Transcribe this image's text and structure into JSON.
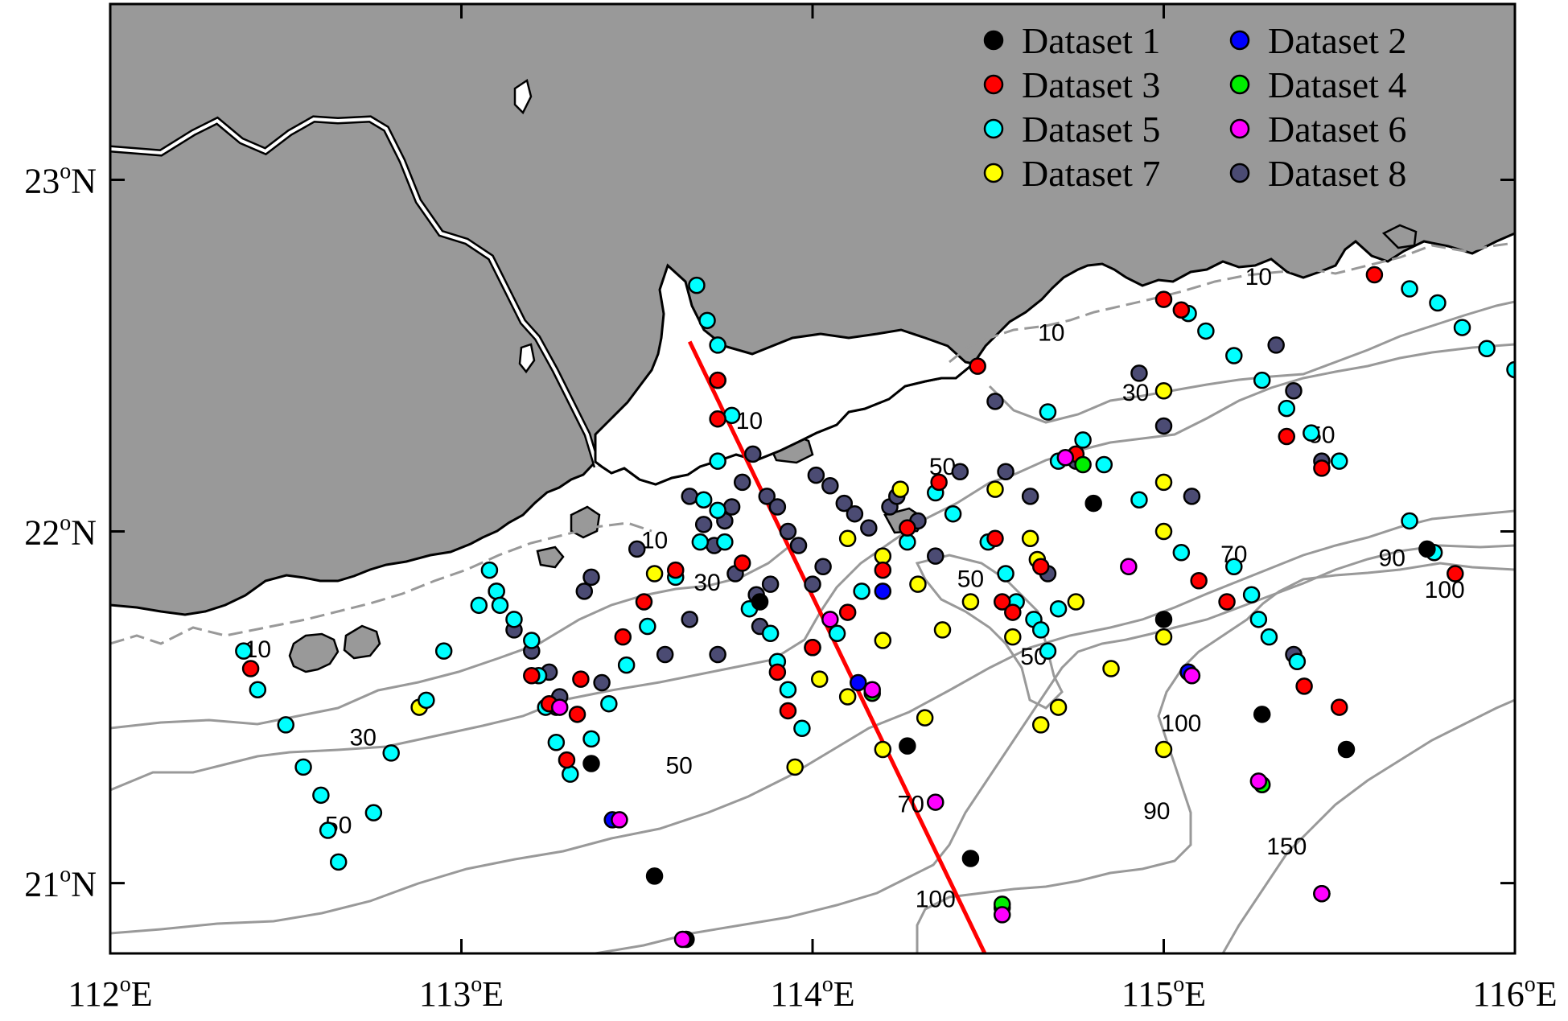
{
  "map": {
    "lon_range": [
      112,
      116
    ],
    "lat_range": [
      20.8,
      23.5
    ],
    "x_ticks": [
      {
        "value": 112,
        "deg": "112",
        "hemi": "E"
      },
      {
        "value": 113,
        "deg": "113",
        "hemi": "E"
      },
      {
        "value": 114,
        "deg": "114",
        "hemi": "E"
      },
      {
        "value": 115,
        "deg": "115",
        "hemi": "E"
      },
      {
        "value": 116,
        "deg": "116",
        "hemi": "E"
      }
    ],
    "y_ticks": [
      {
        "value": 21,
        "deg": "21",
        "hemi": "N"
      },
      {
        "value": 22,
        "deg": "22",
        "hemi": "N"
      },
      {
        "value": 23,
        "deg": "23",
        "hemi": "N"
      }
    ],
    "degree_symbol": "o",
    "colors": {
      "land": "#999999",
      "sea": "#ffffff",
      "coastline": "#000000",
      "contour": "#999999",
      "section_line": "#ff0000"
    }
  },
  "legend": [
    {
      "name": "Dataset 1",
      "color": "#000000"
    },
    {
      "name": "Dataset 2",
      "color": "#0000ff"
    },
    {
      "name": "Dataset 3",
      "color": "#ff0000"
    },
    {
      "name": "Dataset 4",
      "color": "#00ee00"
    },
    {
      "name": "Dataset 5",
      "color": "#00ffff"
    },
    {
      "name": "Dataset 6",
      "color": "#ff00ff"
    },
    {
      "name": "Dataset 7",
      "color": "#ffff00"
    },
    {
      "name": "Dataset 8",
      "color": "#4b4b73"
    }
  ],
  "section_line": [
    [
      113.65,
      22.54
    ],
    [
      114.5,
      20.78
    ]
  ],
  "contour_labels": [
    {
      "text": "10",
      "lon": 112.42,
      "lat": 21.66
    },
    {
      "text": "30",
      "lon": 112.72,
      "lat": 21.41
    },
    {
      "text": "50",
      "lon": 112.65,
      "lat": 21.16
    },
    {
      "text": "50",
      "lon": 113.62,
      "lat": 21.33
    },
    {
      "text": "10",
      "lon": 113.55,
      "lat": 21.97
    },
    {
      "text": "30",
      "lon": 113.7,
      "lat": 21.85
    },
    {
      "text": "10",
      "lon": 113.82,
      "lat": 22.31
    },
    {
      "text": "50",
      "lon": 114.37,
      "lat": 22.18
    },
    {
      "text": "50",
      "lon": 114.45,
      "lat": 21.86
    },
    {
      "text": "50",
      "lon": 114.63,
      "lat": 21.64
    },
    {
      "text": "70",
      "lon": 114.28,
      "lat": 21.22
    },
    {
      "text": "100",
      "lon": 114.35,
      "lat": 20.95
    },
    {
      "text": "90",
      "lon": 114.98,
      "lat": 21.2
    },
    {
      "text": "100",
      "lon": 115.05,
      "lat": 21.45
    },
    {
      "text": "150",
      "lon": 115.35,
      "lat": 21.1
    },
    {
      "text": "70",
      "lon": 115.2,
      "lat": 21.93
    },
    {
      "text": "90",
      "lon": 115.65,
      "lat": 21.92
    },
    {
      "text": "100",
      "lon": 115.8,
      "lat": 21.83
    },
    {
      "text": "30",
      "lon": 114.92,
      "lat": 22.39
    },
    {
      "text": "50",
      "lon": 115.45,
      "lat": 22.27
    },
    {
      "text": "10",
      "lon": 114.68,
      "lat": 22.56
    },
    {
      "text": "10",
      "lon": 115.27,
      "lat": 22.72
    }
  ],
  "stations": {
    "d1": [
      [
        114.8,
        22.08
      ],
      [
        115,
        21.75
      ],
      [
        115.07,
        21.6
      ],
      [
        115.28,
        21.48
      ],
      [
        115.52,
        21.38
      ],
      [
        114.27,
        21.39
      ],
      [
        114.45,
        21.07
      ],
      [
        113.55,
        21.02
      ],
      [
        113.37,
        21.34
      ],
      [
        113.85,
        21.8
      ],
      [
        115.75,
        21.95
      ],
      [
        115.45,
        20.97
      ],
      [
        113.64,
        20.84
      ]
    ],
    "d2": [
      [
        113.43,
        21.18
      ],
      [
        114.13,
        21.57
      ],
      [
        114.2,
        21.83
      ],
      [
        115.07,
        21.6
      ],
      [
        115.45,
        20.97
      ],
      [
        114.54,
        20.93
      ]
    ],
    "d3": [
      [
        112.4,
        21.61
      ],
      [
        113.2,
        21.59
      ],
      [
        113.25,
        21.51
      ],
      [
        113.33,
        21.48
      ],
      [
        113.3,
        21.35
      ],
      [
        113.34,
        21.58
      ],
      [
        113.46,
        21.7
      ],
      [
        113.52,
        21.8
      ],
      [
        113.61,
        21.89
      ],
      [
        113.8,
        21.91
      ],
      [
        113.73,
        22.32
      ],
      [
        113.73,
        22.43
      ],
      [
        113.9,
        21.6
      ],
      [
        113.93,
        21.49
      ],
      [
        114.0,
        21.67
      ],
      [
        114.1,
        21.77
      ],
      [
        114.2,
        21.89
      ],
      [
        114.27,
        22.01
      ],
      [
        114.36,
        22.14
      ],
      [
        114.47,
        22.47
      ],
      [
        114.52,
        21.98
      ],
      [
        114.54,
        21.8
      ],
      [
        114.57,
        21.77
      ],
      [
        114.65,
        21.9
      ],
      [
        114.75,
        22.22
      ],
      [
        115.0,
        22.66
      ],
      [
        115.05,
        22.63
      ],
      [
        115.1,
        21.86
      ],
      [
        115.18,
        21.8
      ],
      [
        115.4,
        21.56
      ],
      [
        115.5,
        21.5
      ],
      [
        115.35,
        22.27
      ],
      [
        115.45,
        22.18
      ],
      [
        115.6,
        22.73
      ],
      [
        115.83,
        21.88
      ]
    ],
    "d4": [
      [
        114.77,
        22.19
      ],
      [
        114.54,
        20.94
      ],
      [
        115.28,
        21.28
      ],
      [
        114.17,
        21.54
      ]
    ],
    "d5": [
      [
        113.67,
        22.7
      ],
      [
        113.7,
        22.6
      ],
      [
        113.73,
        22.53
      ],
      [
        113.73,
        22.43
      ],
      [
        113.77,
        22.33
      ],
      [
        113.73,
        22.2
      ],
      [
        113.69,
        22.09
      ],
      [
        113.73,
        22.06
      ],
      [
        113.68,
        21.97
      ],
      [
        113.61,
        21.87
      ],
      [
        113.53,
        21.73
      ],
      [
        113.47,
        21.62
      ],
      [
        113.75,
        21.97
      ],
      [
        113.82,
        21.78
      ],
      [
        113.88,
        21.71
      ],
      [
        113.9,
        21.63
      ],
      [
        113.93,
        21.55
      ],
      [
        113.97,
        21.44
      ],
      [
        113.08,
        21.89
      ],
      [
        113.1,
        21.83
      ],
      [
        113.11,
        21.79
      ],
      [
        113.15,
        21.75
      ],
      [
        113.2,
        21.69
      ],
      [
        113.22,
        21.59
      ],
      [
        113.24,
        21.5
      ],
      [
        113.27,
        21.4
      ],
      [
        113.31,
        21.31
      ],
      [
        113.37,
        21.41
      ],
      [
        113.42,
        21.51
      ],
      [
        112.38,
        21.66
      ],
      [
        112.42,
        21.55
      ],
      [
        112.5,
        21.45
      ],
      [
        112.55,
        21.33
      ],
      [
        112.6,
        21.25
      ],
      [
        112.62,
        21.15
      ],
      [
        112.65,
        21.06
      ],
      [
        112.75,
        21.2
      ],
      [
        112.8,
        21.37
      ],
      [
        112.9,
        21.52
      ],
      [
        112.95,
        21.66
      ],
      [
        113.05,
        21.79
      ],
      [
        114.0,
        21.67
      ],
      [
        114.07,
        21.71
      ],
      [
        114.14,
        21.83
      ],
      [
        114.27,
        21.97
      ],
      [
        114.35,
        22.11
      ],
      [
        114.4,
        22.05
      ],
      [
        114.5,
        21.97
      ],
      [
        114.55,
        21.88
      ],
      [
        114.58,
        21.8
      ],
      [
        114.63,
        21.75
      ],
      [
        114.65,
        21.72
      ],
      [
        114.67,
        21.66
      ],
      [
        114.7,
        21.78
      ],
      [
        114.7,
        22.2
      ],
      [
        114.67,
        22.34
      ],
      [
        114.77,
        22.26
      ],
      [
        114.83,
        22.19
      ],
      [
        114.93,
        22.09
      ],
      [
        115.07,
        22.62
      ],
      [
        115.12,
        22.57
      ],
      [
        115.2,
        22.5
      ],
      [
        115.28,
        22.43
      ],
      [
        115.35,
        22.35
      ],
      [
        115.42,
        22.28
      ],
      [
        115.5,
        22.2
      ],
      [
        115.7,
        22.69
      ],
      [
        115.78,
        22.65
      ],
      [
        115.85,
        22.58
      ],
      [
        115.92,
        22.52
      ],
      [
        116.0,
        22.46
      ],
      [
        115.05,
        21.94
      ],
      [
        115.2,
        21.9
      ],
      [
        115.25,
        21.82
      ],
      [
        115.27,
        21.75
      ],
      [
        115.3,
        21.7
      ],
      [
        115.38,
        21.63
      ],
      [
        115.7,
        22.03
      ],
      [
        115.77,
        21.94
      ]
    ],
    "d6": [
      [
        113.28,
        21.5
      ],
      [
        113.45,
        21.18
      ],
      [
        114.05,
        21.75
      ],
      [
        114.17,
        21.55
      ],
      [
        114.35,
        21.23
      ],
      [
        114.72,
        22.21
      ],
      [
        114.9,
        21.9
      ],
      [
        115.08,
        21.59
      ],
      [
        115.27,
        21.29
      ],
      [
        115.45,
        20.97
      ],
      [
        114.54,
        20.91
      ],
      [
        113.63,
        20.84
      ]
    ],
    "d7": [
      [
        112.88,
        21.5
      ],
      [
        113.55,
        21.88
      ],
      [
        113.95,
        21.33
      ],
      [
        114.02,
        21.58
      ],
      [
        114.1,
        21.53
      ],
      [
        114.2,
        21.38
      ],
      [
        114.2,
        21.69
      ],
      [
        114.2,
        21.93
      ],
      [
        114.3,
        21.85
      ],
      [
        114.32,
        21.47
      ],
      [
        114.37,
        21.72
      ],
      [
        114.45,
        21.8
      ],
      [
        114.52,
        22.12
      ],
      [
        114.57,
        21.7
      ],
      [
        114.65,
        21.45
      ],
      [
        114.7,
        21.5
      ],
      [
        114.75,
        21.8
      ],
      [
        114.85,
        21.61
      ],
      [
        115.0,
        22.4
      ],
      [
        115.0,
        22.14
      ],
      [
        115.0,
        22.0
      ],
      [
        115.0,
        21.7
      ],
      [
        115.0,
        21.38
      ],
      [
        114.62,
        21.98
      ],
      [
        114.64,
        21.92
      ],
      [
        114.1,
        21.98
      ],
      [
        114.25,
        22.12
      ]
    ],
    "d8": [
      [
        113.5,
        21.95
      ],
      [
        113.37,
        21.87
      ],
      [
        113.35,
        21.83
      ],
      [
        113.1,
        21.83
      ],
      [
        113.15,
        21.72
      ],
      [
        113.2,
        21.66
      ],
      [
        113.25,
        21.6
      ],
      [
        113.27,
        21.5
      ],
      [
        113.4,
        21.57
      ],
      [
        113.28,
        21.53
      ],
      [
        113.65,
        22.1
      ],
      [
        113.69,
        22.02
      ],
      [
        113.72,
        21.96
      ],
      [
        113.78,
        21.88
      ],
      [
        113.84,
        21.82
      ],
      [
        113.75,
        22.03
      ],
      [
        113.77,
        22.07
      ],
      [
        113.8,
        22.14
      ],
      [
        113.83,
        22.22
      ],
      [
        113.87,
        22.1
      ],
      [
        113.9,
        22.07
      ],
      [
        113.93,
        22.0
      ],
      [
        113.96,
        21.96
      ],
      [
        114.01,
        22.16
      ],
      [
        114.05,
        22.13
      ],
      [
        114.09,
        22.08
      ],
      [
        114.12,
        22.05
      ],
      [
        114.16,
        22.01
      ],
      [
        114.22,
        22.07
      ],
      [
        114.24,
        22.1
      ],
      [
        114.3,
        22.03
      ],
      [
        114.42,
        22.17
      ],
      [
        114.52,
        22.37
      ],
      [
        114.55,
        22.17
      ],
      [
        114.62,
        22.1
      ],
      [
        114.67,
        21.88
      ],
      [
        114.75,
        22.2
      ],
      [
        115.0,
        22.3
      ],
      [
        115.08,
        22.1
      ],
      [
        114.93,
        22.45
      ],
      [
        115.32,
        22.53
      ],
      [
        115.37,
        22.4
      ],
      [
        115.45,
        22.2
      ],
      [
        115.37,
        21.65
      ],
      [
        113.58,
        21.65
      ],
      [
        113.65,
        21.75
      ],
      [
        113.73,
        21.65
      ],
      [
        113.85,
        21.73
      ],
      [
        113.88,
        21.85
      ],
      [
        114.03,
        21.9
      ],
      [
        114.0,
        21.85
      ],
      [
        114.35,
        21.93
      ]
    ]
  }
}
